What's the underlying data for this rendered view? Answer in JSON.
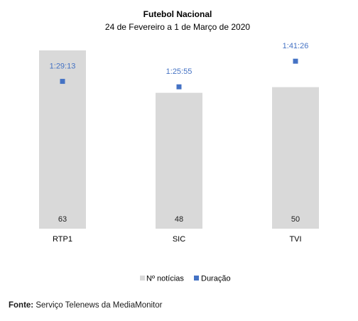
{
  "chart_data": {
    "type": "bar",
    "title": "Futebol Nacional",
    "subtitle": "24 de Fevereiro a 1 de Março de 2020",
    "categories": [
      "RTP1",
      "SIC",
      "TVI"
    ],
    "series": [
      {
        "name": "Nº notícias",
        "type": "bar",
        "values": [
          63,
          48,
          50
        ],
        "color": "#d9d9d9"
      },
      {
        "name": "Duração",
        "type": "scatter",
        "values": [
          "1:29:13",
          "1:25:55",
          "1:41:26"
        ],
        "color": "#4472c4"
      }
    ],
    "ylim": [
      0,
      70
    ],
    "y2lim": [
      "0:00:00",
      "2:00:00"
    ],
    "grid": false,
    "legend_position": "bottom"
  },
  "source": {
    "label": "Fonte:",
    "text": " Serviço Telenews da MediaMonitor"
  }
}
